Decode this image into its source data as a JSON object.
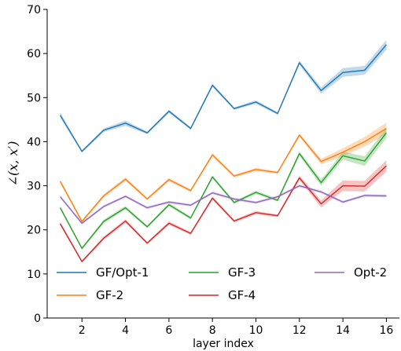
{
  "chart_data": {
    "type": "line",
    "title": "",
    "xlabel": "layer index",
    "ylabel": "∠(x, x′)",
    "xlim": [
      0.4,
      16.6
    ],
    "ylim": [
      0,
      70
    ],
    "xticks": [
      2,
      4,
      6,
      8,
      10,
      12,
      14,
      16
    ],
    "yticks": [
      0,
      10,
      20,
      30,
      40,
      50,
      60,
      70
    ],
    "grid": false,
    "legend_position": "bottom",
    "x": [
      1,
      2,
      3,
      4,
      5,
      6,
      7,
      8,
      9,
      10,
      11,
      12,
      13,
      14,
      15,
      16
    ],
    "series": [
      {
        "name": "GF/Opt-1",
        "color": "#1f77b4",
        "values": [
          46.0,
          37.8,
          42.6,
          44.2,
          42.0,
          46.9,
          43.0,
          52.8,
          47.5,
          49.0,
          46.4,
          57.9,
          51.6,
          55.7,
          56.2,
          62.0
        ],
        "band": [
          0.6,
          0.3,
          0.4,
          0.6,
          0.3,
          0.4,
          0.3,
          0.4,
          0.3,
          0.4,
          0.3,
          0.5,
          0.7,
          1.0,
          1.0,
          1.1
        ]
      },
      {
        "name": "GF-2",
        "color": "#ff7f0e",
        "values": [
          31.0,
          21.9,
          27.7,
          31.5,
          27.0,
          31.4,
          28.9,
          37.0,
          32.2,
          33.7,
          33.0,
          41.5,
          35.5,
          37.6,
          40.0,
          43.0
        ],
        "band": [
          0.4,
          0.3,
          0.4,
          0.4,
          0.3,
          0.4,
          0.3,
          0.4,
          0.3,
          0.4,
          0.3,
          0.4,
          0.6,
          0.9,
          1.1,
          1.3
        ]
      },
      {
        "name": "GF-3",
        "color": "#2ca02c",
        "values": [
          25.0,
          15.8,
          21.9,
          25.0,
          20.7,
          25.7,
          22.7,
          32.0,
          26.2,
          28.5,
          26.7,
          37.3,
          30.7,
          36.8,
          35.6,
          42.0
        ],
        "band": [
          0.4,
          0.3,
          0.4,
          0.4,
          0.3,
          0.4,
          0.3,
          0.4,
          0.3,
          0.4,
          0.3,
          0.5,
          0.7,
          0.9,
          1.1,
          1.2
        ]
      },
      {
        "name": "GF-4",
        "color": "#d62728",
        "values": [
          21.4,
          12.8,
          18.1,
          22.0,
          17.0,
          21.5,
          19.2,
          27.2,
          22.0,
          23.9,
          23.2,
          31.8,
          25.9,
          30.0,
          29.9,
          34.5
        ],
        "band": [
          0.4,
          0.3,
          0.4,
          0.4,
          0.3,
          0.4,
          0.3,
          0.4,
          0.3,
          0.4,
          0.3,
          0.5,
          0.8,
          1.2,
          1.2,
          1.3
        ]
      },
      {
        "name": "Opt-2",
        "color": "#9467bd",
        "values": [
          27.5,
          21.5,
          25.3,
          27.6,
          25.0,
          26.3,
          25.6,
          28.4,
          27.0,
          26.2,
          27.5,
          30.0,
          28.6,
          26.3,
          27.8,
          27.7
        ],
        "band": [
          0.3,
          0.3,
          0.3,
          0.3,
          0.3,
          0.3,
          0.3,
          0.3,
          0.3,
          0.3,
          0.3,
          0.3,
          0.3,
          0.3,
          0.3,
          0.3
        ]
      }
    ]
  }
}
